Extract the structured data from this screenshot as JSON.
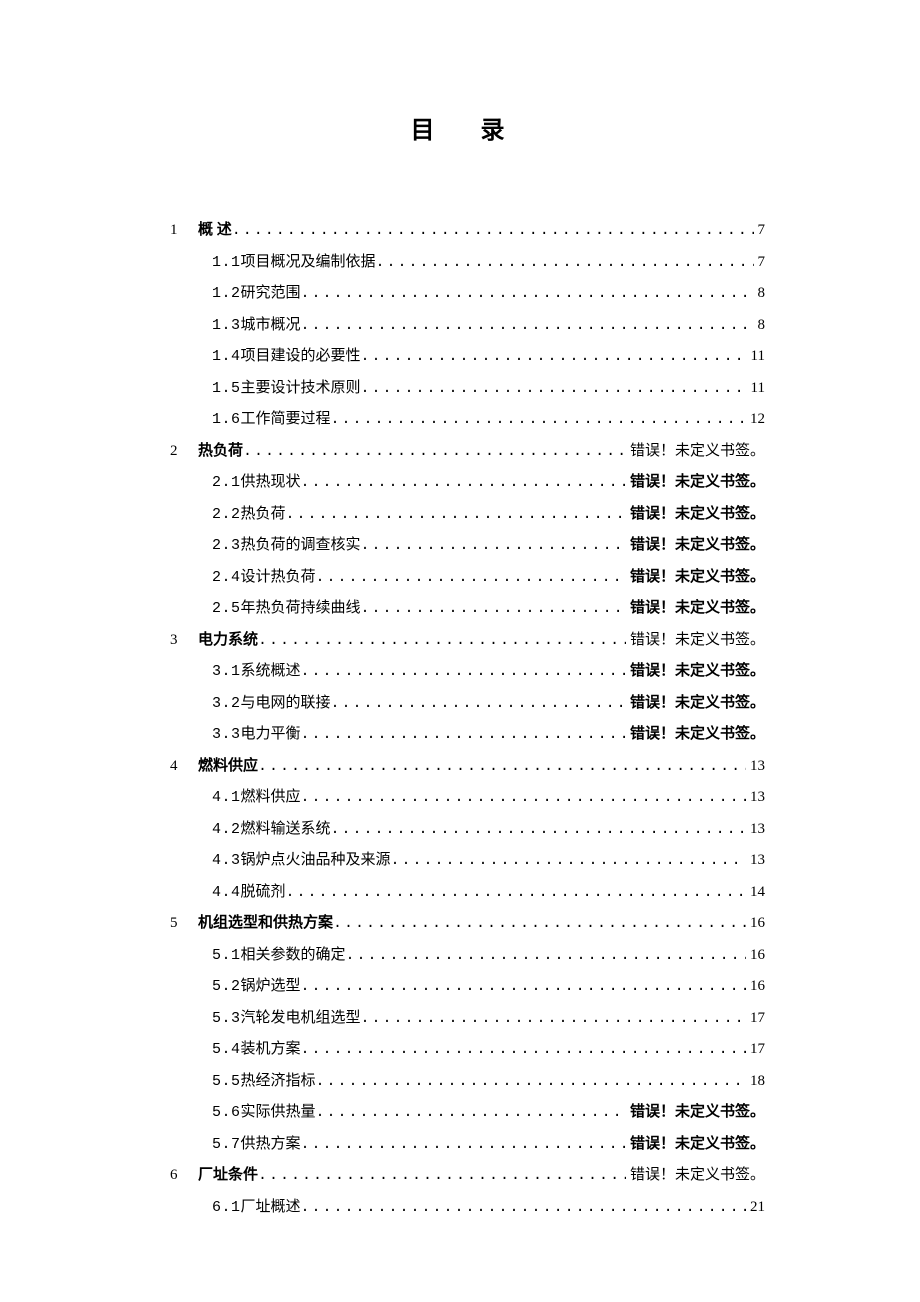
{
  "title": "目  录",
  "error_text": "错误！未定义书签。",
  "toc": [
    {
      "num": "1",
      "label": "概  述",
      "page": "7",
      "bold": true,
      "children": [
        {
          "num": "1.1",
          "label": "项目概况及编制依据",
          "page": "7"
        },
        {
          "num": "1.2",
          "label": "研究范围",
          "page": "8"
        },
        {
          "num": "1.3",
          "label": "城市概况",
          "page": "8"
        },
        {
          "num": "1.4",
          "label": "项目建设的必要性",
          "page": "11"
        },
        {
          "num": "1.5",
          "label": "主要设计技术原则",
          "page": "11"
        },
        {
          "num": "1.6",
          "label": "工作简要过程",
          "page": "12"
        }
      ]
    },
    {
      "num": "2",
      "label": "热负荷",
      "page": "ERR",
      "bold": true,
      "err_bold": false,
      "children": [
        {
          "num": "2.1",
          "label": "供热现状",
          "page": "ERR",
          "space_after_label": true
        },
        {
          "num": "2.2",
          "label": "热负荷",
          "page": "ERR",
          "space_after_label": true
        },
        {
          "num": "2.3",
          "label": "热负荷的调查核实",
          "page": "ERR",
          "space_after_label": true,
          "no_space_after_num": true
        },
        {
          "num": "2.4",
          "label": "设计热负荷",
          "page": "ERR",
          "space_after_label": true
        },
        {
          "num": "2.5",
          "label": "年热负荷持续曲线",
          "page": "ERR",
          "space_after_label": true
        }
      ]
    },
    {
      "num": "3",
      "label": "电力系统",
      "page": "ERR",
      "bold": true,
      "err_bold": false,
      "children": [
        {
          "num": "3.1",
          "label": "系统概述",
          "page": "ERR",
          "space_after_label": true
        },
        {
          "num": "3.2",
          "label": "与电网的联接",
          "page": "ERR",
          "space_after_label": true
        },
        {
          "num": "3.3",
          "label": "电力平衡",
          "page": "ERR",
          "space_after_label": true
        }
      ]
    },
    {
      "num": "4",
      "label": "燃料供应",
      "page": "13",
      "bold": true,
      "children": [
        {
          "num": "4.1",
          "label": "燃料供应",
          "page": "13"
        },
        {
          "num": "4.2",
          "label": "燃料输送系统",
          "page": "13"
        },
        {
          "num": "4.3",
          "label": "锅炉点火油品种及来源",
          "page": "13"
        },
        {
          "num": "4.4",
          "label": "脱硫剂",
          "page": "14"
        }
      ]
    },
    {
      "num": "5",
      "label": "机组选型和供热方案",
      "page": "16",
      "bold": true,
      "children": [
        {
          "num": "5.1",
          "label": "相关参数的确定",
          "page": "16"
        },
        {
          "num": "5.2",
          "label": "锅炉选型",
          "page": "16"
        },
        {
          "num": "5.3",
          "label": "汽轮发电机组选型",
          "page": "17"
        },
        {
          "num": "5.4",
          "label": "装机方案",
          "page": "17"
        },
        {
          "num": "5.5",
          "label": "热经济指标",
          "page": "18"
        },
        {
          "num": "5.6",
          "label": "实际供热量",
          "page": "ERR",
          "space_after_label": true
        },
        {
          "num": "5.7",
          "label": "供热方案",
          "page": "ERR",
          "space_after_label": true
        }
      ]
    },
    {
      "num": "6",
      "label": "厂址条件",
      "page": "ERR",
      "bold": true,
      "err_bold": false,
      "children": [
        {
          "num": "6.1",
          "label": "厂址概述",
          "page": "21"
        }
      ]
    }
  ]
}
